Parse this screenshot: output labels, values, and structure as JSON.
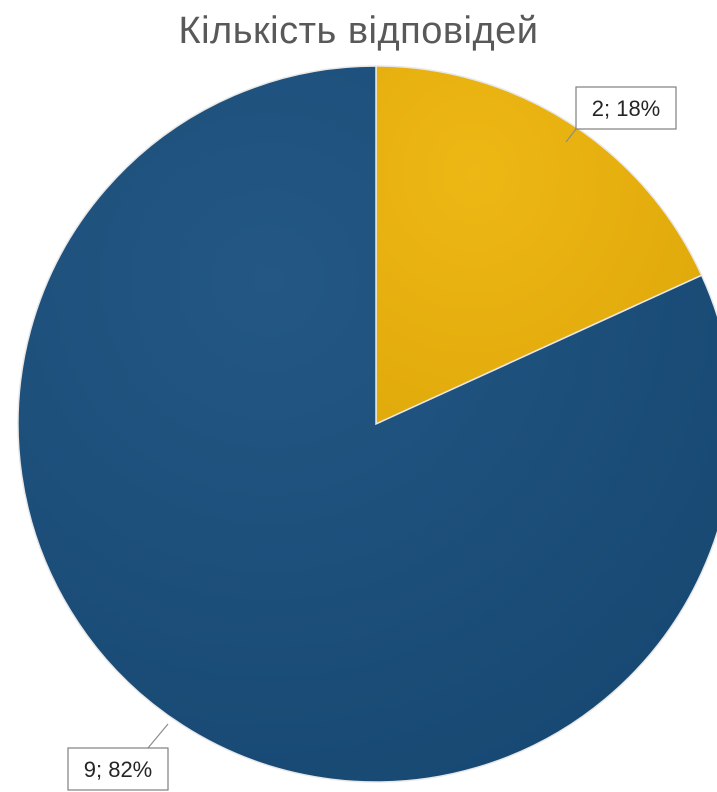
{
  "chart_data": {
    "type": "pie",
    "title": "Кількість відповідей",
    "slices": [
      {
        "value": 2,
        "percent": 18,
        "label": "2; 18%",
        "color": "#E6B00E"
      },
      {
        "value": 9,
        "percent": 82,
        "label": "9; 82%",
        "color": "#1C4C76"
      }
    ],
    "legend": false
  }
}
